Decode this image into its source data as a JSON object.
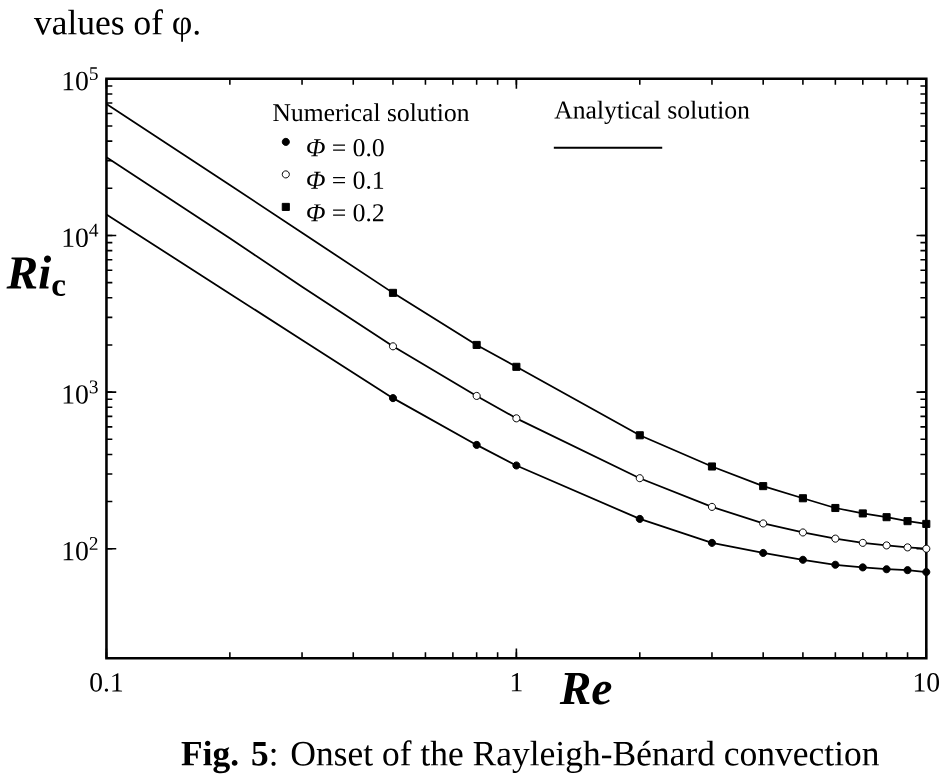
{
  "chart_data": {
    "type": "line",
    "xlabel": "Re",
    "ylabel": "*Ri*$_{c}$",
    "log": "xy",
    "xlim": [
      0.1,
      10
    ],
    "ylim": [
      20,
      100000
    ],
    "xticks": [
      0.1,
      1,
      10
    ],
    "yticks": [
      {
        "value": 100,
        "label": "10$^{2}$"
      },
      {
        "value": 1000,
        "label": "10$^{3}$"
      },
      {
        "value": 10000,
        "label": "10$^{4}$"
      },
      {
        "value": 100000,
        "label": "10$^{5}$"
      }
    ],
    "legend": "top",
    "legend_title": "Numerical solution",
    "annotations": [
      "values of φ.",
      "**Fig. 5**: Onset of the Rayleigh-Bénard convection"
    ],
    "series": [
      {
        "name": "Analytical solution",
        "color": "#000000",
        "line_style": "solid",
        "marker": "none",
        "x": [
          0.1,
          0.2,
          0.3,
          0.5,
          0.8,
          1,
          2,
          3,
          4,
          5,
          6,
          7,
          8,
          9,
          10
        ],
        "values": [
          13600,
          4250,
          2150,
          915,
          460,
          340,
          155,
          109,
          94,
          85,
          79,
          76,
          74,
          73,
          71
        ]
      },
      {
        "color": "#000000",
        "line_style": "solid",
        "marker": "none",
        "x": [
          0.1,
          0.2,
          0.3,
          0.5,
          0.8,
          1,
          2,
          3,
          4,
          5,
          6,
          7,
          8,
          9,
          10
        ],
        "values": [
          31600,
          9600,
          4700,
          1960,
          945,
          680,
          282,
          185,
          145,
          127,
          116,
          109,
          105,
          102,
          100
        ]
      },
      {
        "color": "#000000",
        "line_style": "solid",
        "marker": "none",
        "x": [
          0.1,
          0.2,
          0.3,
          0.5,
          0.8,
          1,
          2,
          3,
          4,
          5,
          6,
          7,
          8,
          9,
          10
        ],
        "values": [
          69000,
          21000,
          10400,
          4300,
          2000,
          1450,
          530,
          335,
          251,
          210,
          182,
          168,
          159,
          150,
          144
        ]
      },
      {
        "name": "*Φ* = 0.0",
        "type": "scatter",
        "color": "#000000",
        "marker": "circle",
        "x": [
          0.5,
          0.8,
          1,
          2,
          3,
          4,
          5,
          6,
          7,
          8,
          9,
          10
        ],
        "values": [
          915,
          460,
          340,
          155,
          109,
          94,
          85,
          79,
          76,
          74,
          73,
          71
        ]
      },
      {
        "name": "*Φ* = 0.1",
        "type": "scatter",
        "color": "#ffffff",
        "marker": "circle",
        "x": [
          0.5,
          0.8,
          1,
          2,
          3,
          4,
          5,
          6,
          7,
          8,
          9,
          10
        ],
        "values": [
          1960,
          945,
          680,
          282,
          185,
          145,
          127,
          116,
          109,
          105,
          102,
          100
        ]
      },
      {
        "name": "*Φ* = 0.2",
        "type": "scatter",
        "color": "#000000",
        "marker": "square",
        "x": [
          0.5,
          0.8,
          1,
          2,
          3,
          4,
          5,
          6,
          7,
          8,
          9,
          10
        ],
        "values": [
          4300,
          2000,
          1450,
          530,
          335,
          251,
          210,
          182,
          168,
          159,
          150,
          144
        ]
      }
    ]
  }
}
